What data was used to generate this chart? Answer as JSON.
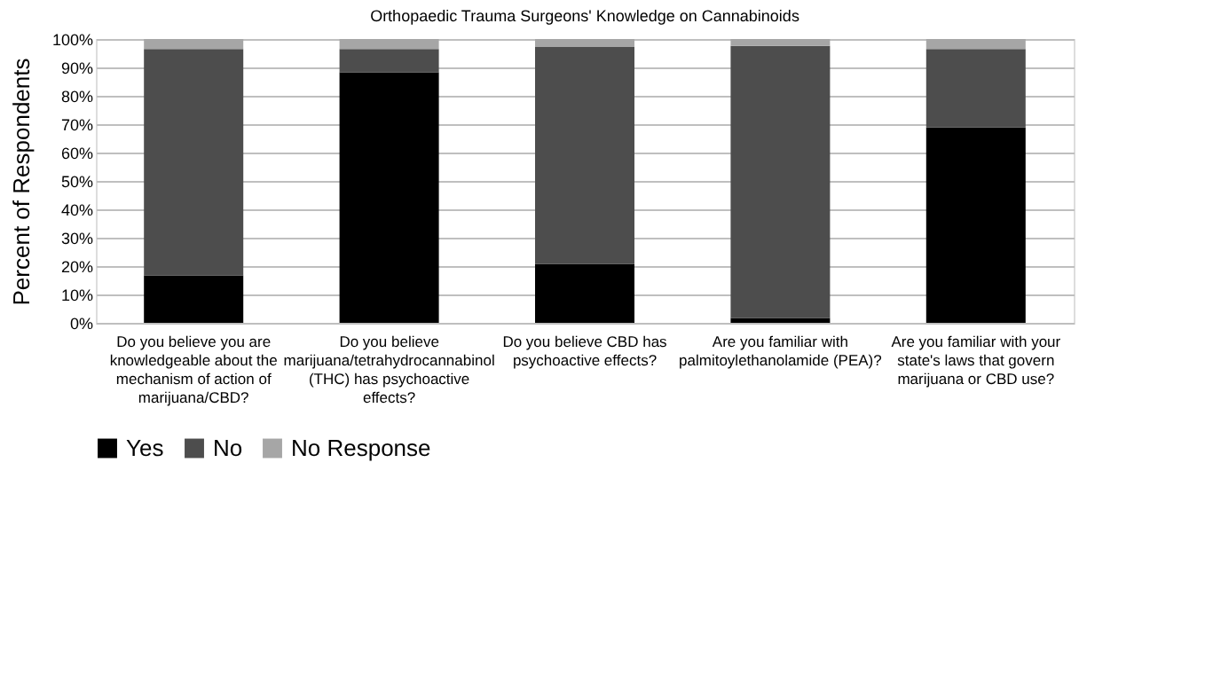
{
  "chart_data": {
    "type": "bar",
    "title": "Orthopaedic Trauma Surgeons' Knowledge on Cannabinoids",
    "ylabel": "Percent of Respondents",
    "categories": [
      "Do you believe you are knowledgeable about the mechanism of action of marijuana/CBD?",
      "Do you believe marijuana/tetrahydrocannabinol (THC) has psychoactive effects?",
      "Do you believe CBD has psychoactive effects?",
      "Are you familiar with palmitoylethanolamide (PEA)?",
      "Are you familiar with your state's laws that govern marijuana or CBD use?"
    ],
    "stacked": true,
    "series": [
      {
        "name": "Yes",
        "color": "#000000",
        "values": [
          16.7,
          88.3,
          20.8,
          1.7,
          68.8
        ]
      },
      {
        "name": "No",
        "color": "#4d4d4d",
        "values": [
          79.8,
          8.2,
          76.4,
          95.9,
          27.7
        ]
      },
      {
        "name": "No Response",
        "color": "#a6a6a6",
        "values": [
          3.5,
          3.5,
          2.8,
          2.4,
          3.5
        ]
      }
    ],
    "ylim": [
      0,
      100
    ],
    "yticks": [
      {
        "value": 0,
        "label": "0%"
      },
      {
        "value": 10,
        "label": "10%"
      },
      {
        "value": 20,
        "label": "20%"
      },
      {
        "value": 30,
        "label": "30%"
      },
      {
        "value": 40,
        "label": "40%"
      },
      {
        "value": 50,
        "label": "50%"
      },
      {
        "value": 60,
        "label": "60%"
      },
      {
        "value": 70,
        "label": "70%"
      },
      {
        "value": 80,
        "label": "80%"
      },
      {
        "value": 90,
        "label": "90%"
      },
      {
        "value": 100,
        "label": "100%"
      }
    ],
    "grid": "y",
    "legend": "bottom"
  }
}
